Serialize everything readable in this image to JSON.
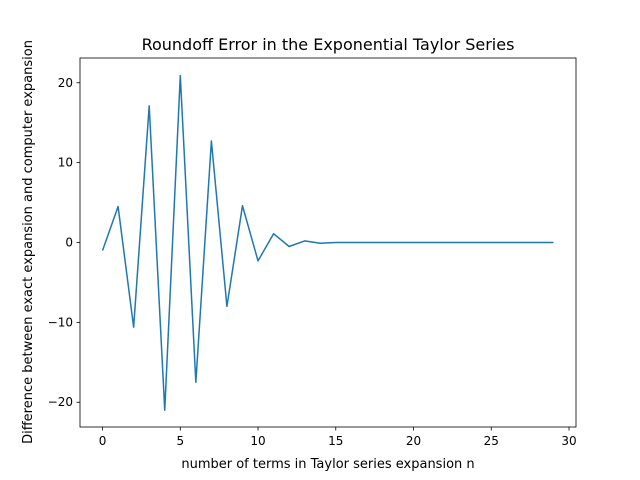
{
  "chart_data": {
    "type": "line",
    "title": "Roundoff Error in the Exponential Taylor Series",
    "xlabel": "number of terms in Taylor series expansion n",
    "ylabel": "Difference between exact expansion and computer expansion",
    "xlim": [
      -1.45,
      30.45
    ],
    "ylim": [
      -23.1,
      23.1
    ],
    "xticks": [
      0,
      5,
      10,
      15,
      20,
      25,
      30
    ],
    "yticks": [
      -20,
      -10,
      0,
      10,
      20
    ],
    "grid": false,
    "series": [
      {
        "color": "#1f77b4",
        "x": [
          0,
          1,
          2,
          3,
          4,
          5,
          6,
          7,
          8,
          9,
          10,
          11,
          12,
          13,
          14,
          15,
          16,
          17,
          18,
          19,
          20,
          21,
          22,
          23,
          24,
          25,
          26,
          27,
          28,
          29
        ],
        "y": [
          -1.0,
          4.5,
          -10.6,
          17.1,
          -21.0,
          20.9,
          -17.5,
          12.7,
          -8.0,
          4.6,
          -2.3,
          1.1,
          -0.5,
          0.2,
          -0.1,
          0.0,
          0.0,
          0.0,
          0.0,
          0.0,
          0.0,
          0.0,
          0.0,
          0.0,
          0.0,
          0.0,
          0.0,
          0.0,
          0.0,
          0.0
        ]
      }
    ]
  }
}
